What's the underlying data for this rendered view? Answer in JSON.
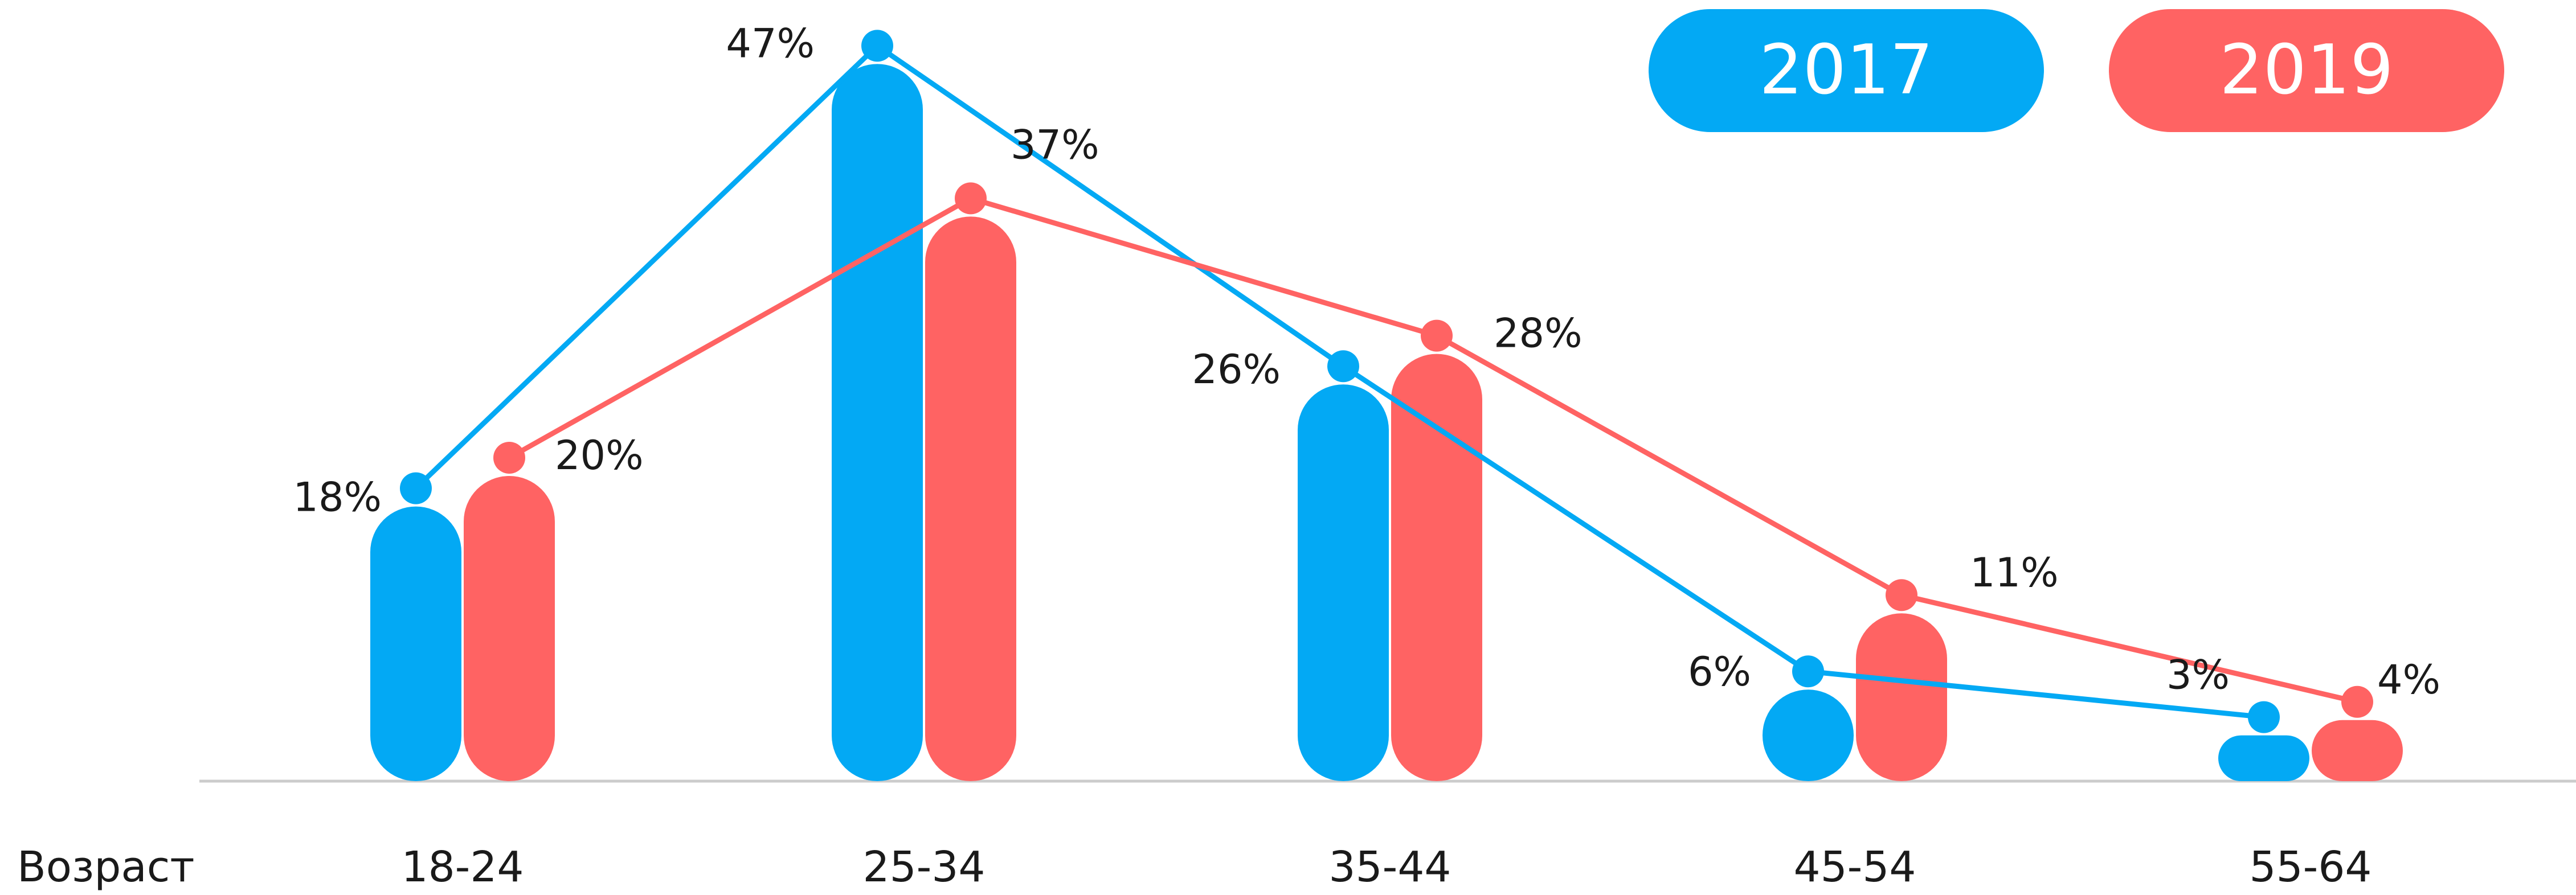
{
  "chart_data": {
    "type": "bar",
    "xlabel": "Возраст",
    "categories": [
      "18-24",
      "25-34",
      "35-44",
      "45-54",
      "55-64"
    ],
    "series": [
      {
        "name": "2017",
        "color": "#03A9F4",
        "values": [
          18,
          47,
          26,
          6,
          3
        ],
        "labels": [
          "18%",
          "47%",
          "26%",
          "6%",
          "3%"
        ]
      },
      {
        "name": "2019",
        "color": "#FF6363",
        "values": [
          20,
          37,
          28,
          11,
          4
        ],
        "labels": [
          "20%",
          "37%",
          "28%",
          "11%",
          "4%"
        ]
      }
    ],
    "overlay": "line",
    "ylim": [
      0,
      50
    ],
    "grid": false,
    "legend": "top-right",
    "baseline_color": "#cccccc"
  }
}
